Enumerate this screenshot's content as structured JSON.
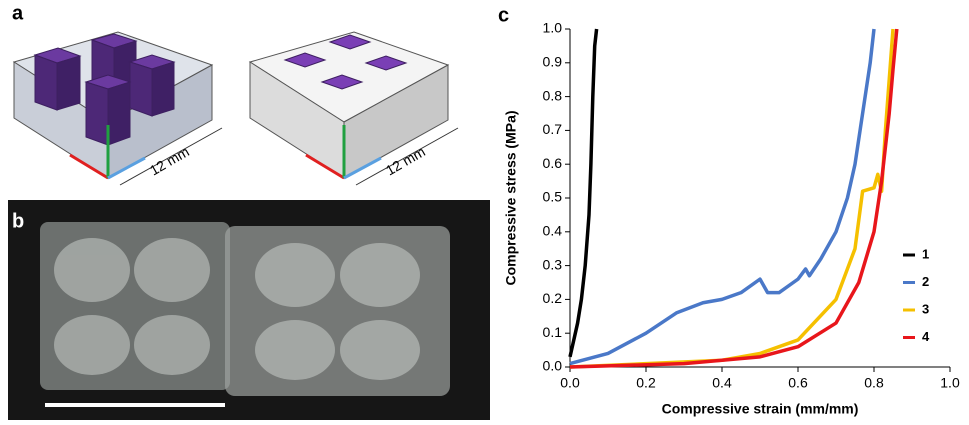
{
  "panel_labels": [
    "a",
    "b",
    "c"
  ],
  "dimension_labels": [
    "12 mm",
    "12 mm"
  ],
  "chart_data": {
    "type": "line",
    "x_label": "Compressive strain (mm/mm)",
    "y_label": "Compressive stress (MPa)",
    "xlim": [
      0,
      1
    ],
    "ylim": [
      0,
      1
    ],
    "xticks": [
      {
        "value": 0,
        "label": "0.0"
      },
      0.2,
      0.4,
      0.6,
      0.8,
      {
        "value": 1,
        "label": "1.0"
      }
    ],
    "yticks": [
      {
        "value": 0,
        "label": "0.0"
      },
      0.1,
      0.2,
      0.3,
      0.4,
      0.5,
      0.6,
      0.7,
      0.8,
      0.9,
      {
        "value": 1,
        "label": "1.0"
      }
    ],
    "legend": "right",
    "series": [
      {
        "name": "1",
        "color": "#000000",
        "x": [
          0,
          0.01,
          0.02,
          0.03,
          0.04,
          0.05,
          0.055,
          0.06,
          0.065,
          0.07
        ],
        "values": [
          0.03,
          0.08,
          0.13,
          0.2,
          0.3,
          0.45,
          0.6,
          0.8,
          0.95,
          1.0
        ]
      },
      {
        "name": "2",
        "color": "#4a78c8",
        "x": [
          0,
          0.1,
          0.2,
          0.28,
          0.35,
          0.4,
          0.45,
          0.5,
          0.52,
          0.55,
          0.6,
          0.62,
          0.63,
          0.66,
          0.7,
          0.73,
          0.75,
          0.77,
          0.79,
          0.8
        ],
        "values": [
          0.01,
          0.04,
          0.1,
          0.16,
          0.19,
          0.2,
          0.22,
          0.26,
          0.22,
          0.22,
          0.26,
          0.29,
          0.27,
          0.32,
          0.4,
          0.5,
          0.6,
          0.75,
          0.9,
          1.0
        ]
      },
      {
        "name": "3",
        "color": "#f5c000",
        "x": [
          0,
          0.2,
          0.4,
          0.5,
          0.6,
          0.7,
          0.75,
          0.77,
          0.8,
          0.81,
          0.82,
          0.83,
          0.84,
          0.85
        ],
        "values": [
          0,
          0.01,
          0.02,
          0.04,
          0.08,
          0.2,
          0.35,
          0.52,
          0.53,
          0.57,
          0.52,
          0.7,
          0.85,
          1.0
        ]
      },
      {
        "name": "4",
        "color": "#e8161b",
        "x": [
          0,
          0.3,
          0.5,
          0.6,
          0.7,
          0.76,
          0.8,
          0.82,
          0.84,
          0.85,
          0.86
        ],
        "values": [
          0,
          0.01,
          0.03,
          0.06,
          0.13,
          0.25,
          0.4,
          0.55,
          0.75,
          0.88,
          1.0
        ]
      }
    ]
  }
}
